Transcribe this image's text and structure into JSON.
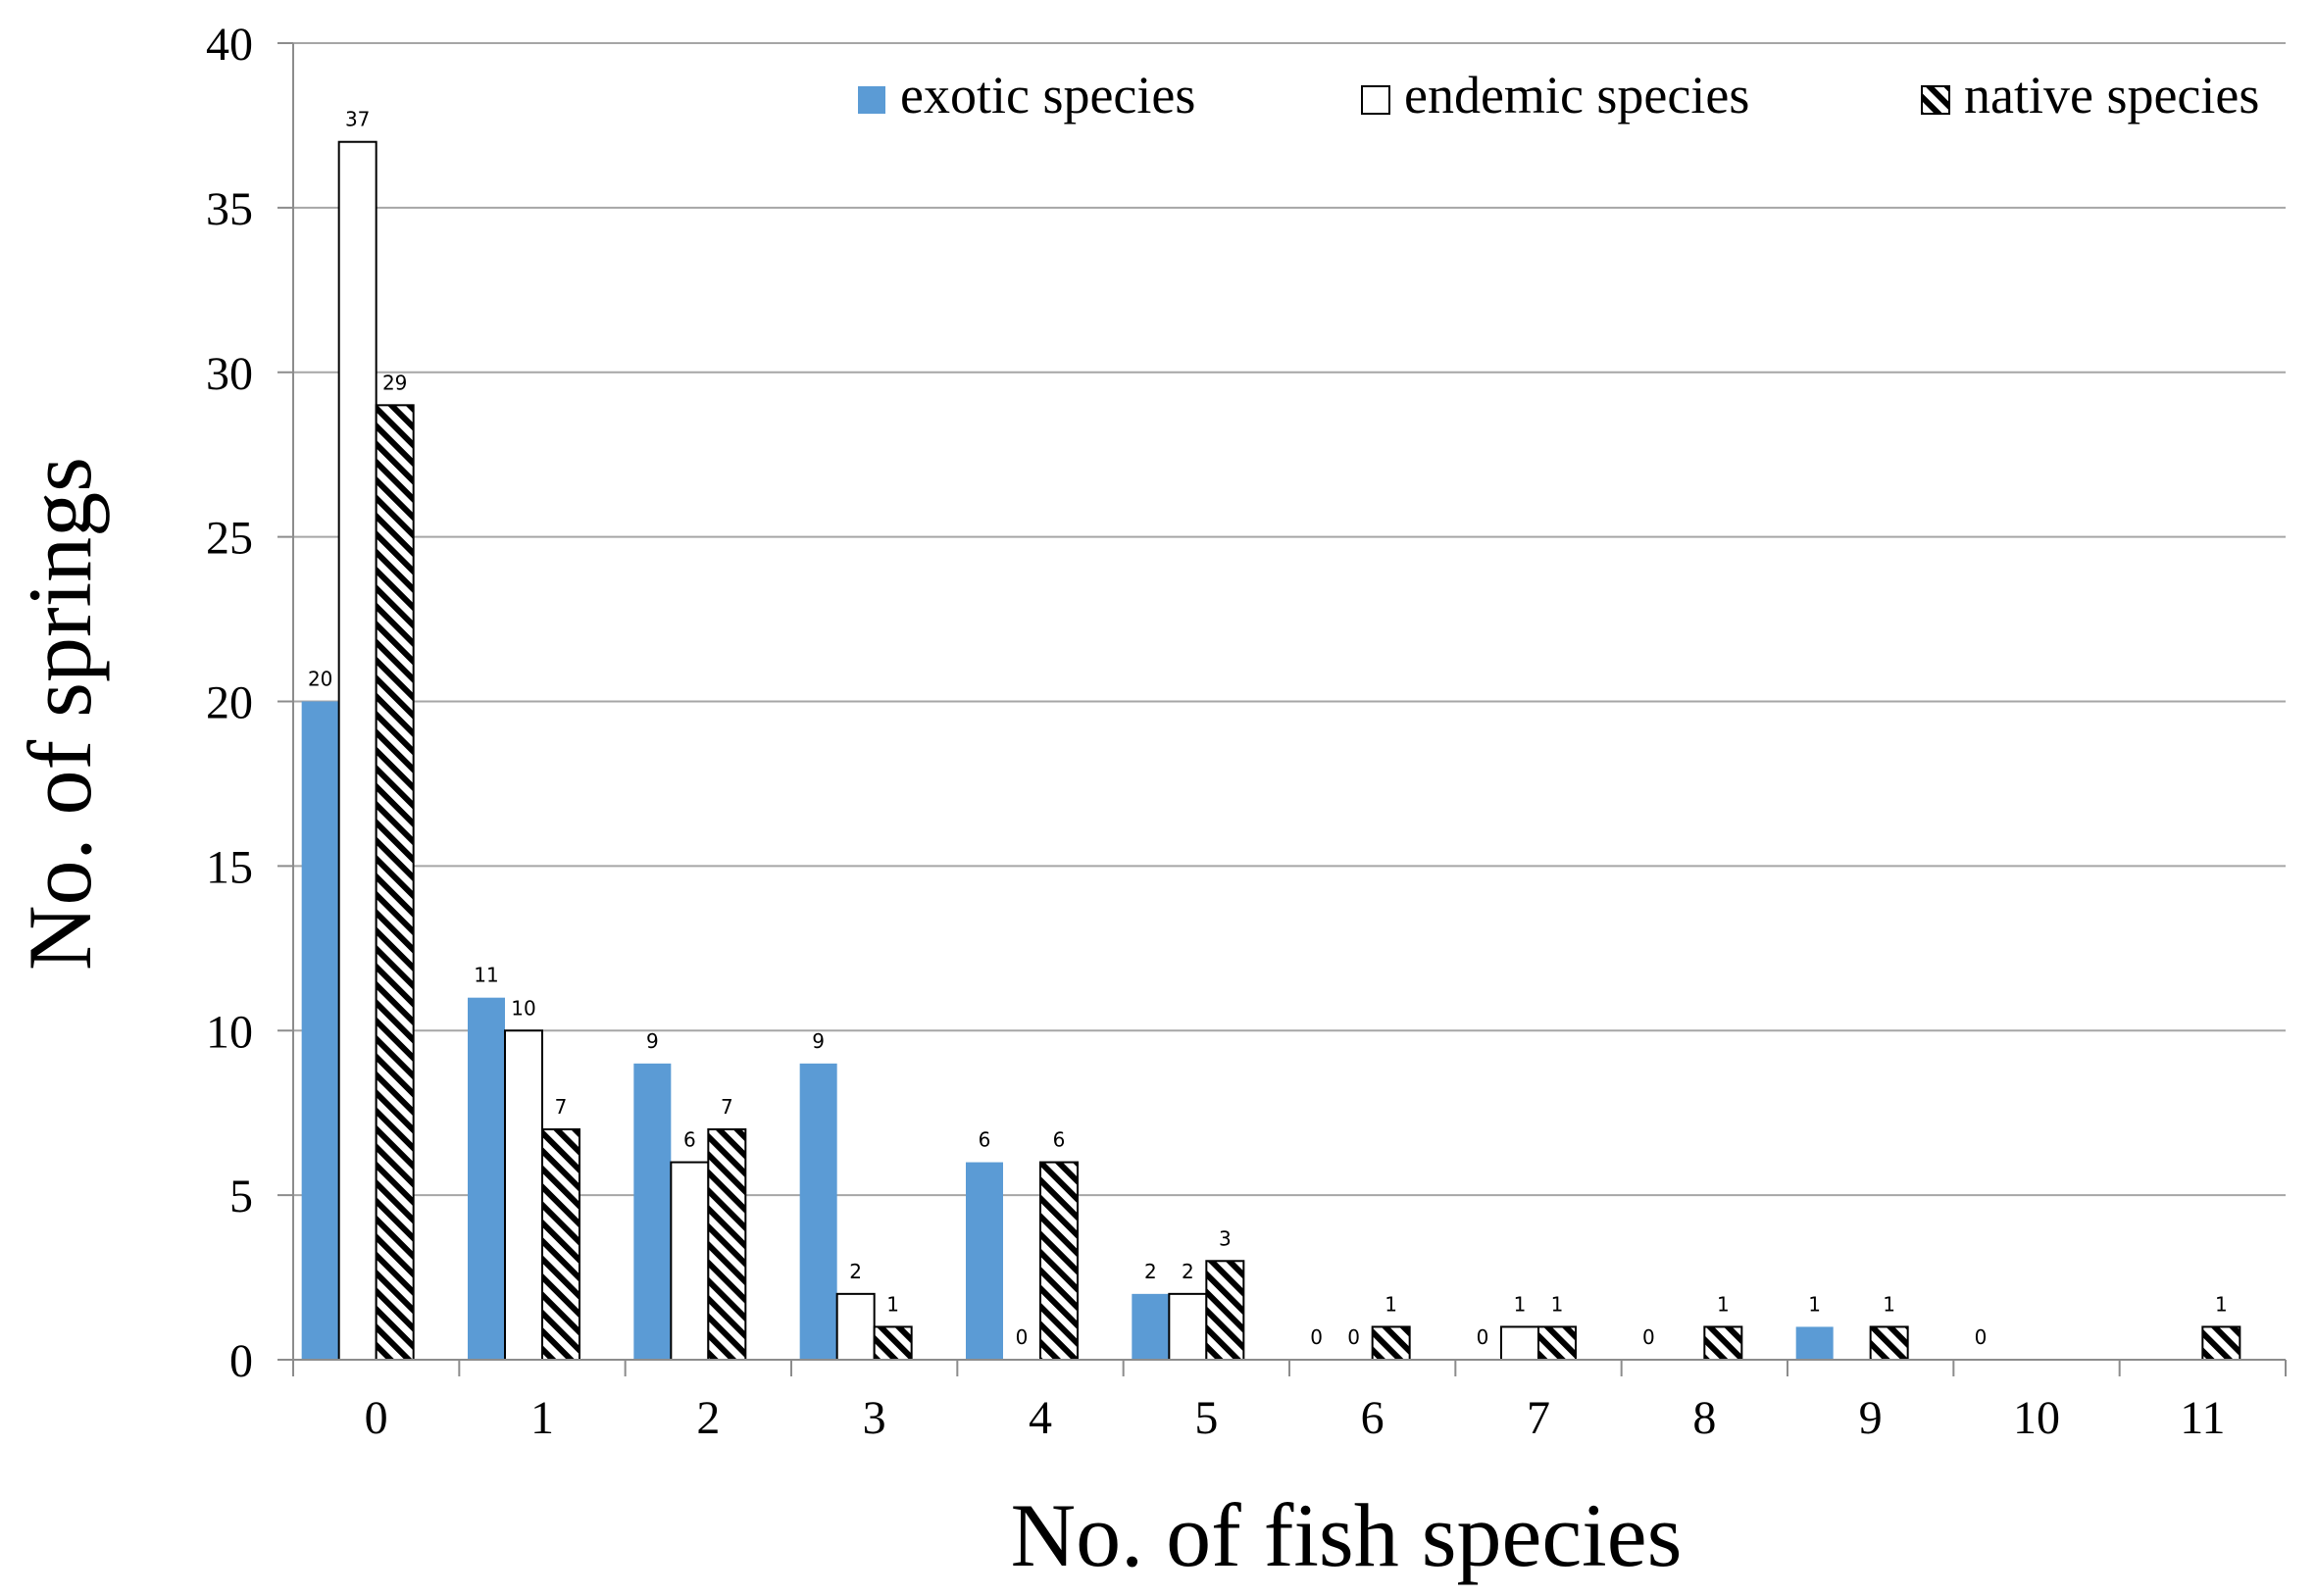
{
  "chart_data": {
    "type": "bar",
    "title": "",
    "xlabel": "No. of fish species",
    "ylabel": "No. of springs",
    "categories": [
      "0",
      "1",
      "2",
      "3",
      "4",
      "5",
      "6",
      "7",
      "8",
      "9",
      "10",
      "11"
    ],
    "ylim": [
      0,
      40
    ],
    "yticks": [
      "0",
      "5",
      "10",
      "15",
      "20",
      "25",
      "30",
      "35",
      "40"
    ],
    "grid": true,
    "legend_position": "top-right",
    "series": [
      {
        "name": "exotic species",
        "fill": "#5b9bd5",
        "values": [
          20,
          11,
          9,
          9,
          6,
          2,
          0,
          0,
          0,
          1,
          0,
          null
        ],
        "labels": [
          "20",
          "11",
          "9",
          "9",
          "6",
          "2",
          "0",
          "0",
          "0",
          "1",
          "0",
          ""
        ]
      },
      {
        "name": "endemic species",
        "fill": "#ffffff",
        "values": [
          37,
          10,
          6,
          2,
          0,
          2,
          0,
          1,
          null,
          null,
          null,
          null
        ],
        "labels": [
          "37",
          "10",
          "6",
          "2",
          "0",
          "2",
          "0",
          "1",
          "",
          "",
          "",
          ""
        ]
      },
      {
        "name": "native species",
        "fill": "hatch",
        "values": [
          29,
          7,
          7,
          1,
          6,
          3,
          1,
          1,
          1,
          1,
          null,
          1
        ],
        "labels": [
          "29",
          "7",
          "7",
          "1",
          "6",
          "3",
          "1",
          "1",
          "1",
          "1",
          "",
          "1"
        ]
      }
    ],
    "colors": {
      "axis": "#8c8c8c",
      "grid": "#a6a6a6",
      "bar_stroke": "#000000",
      "text": "#000000"
    }
  }
}
